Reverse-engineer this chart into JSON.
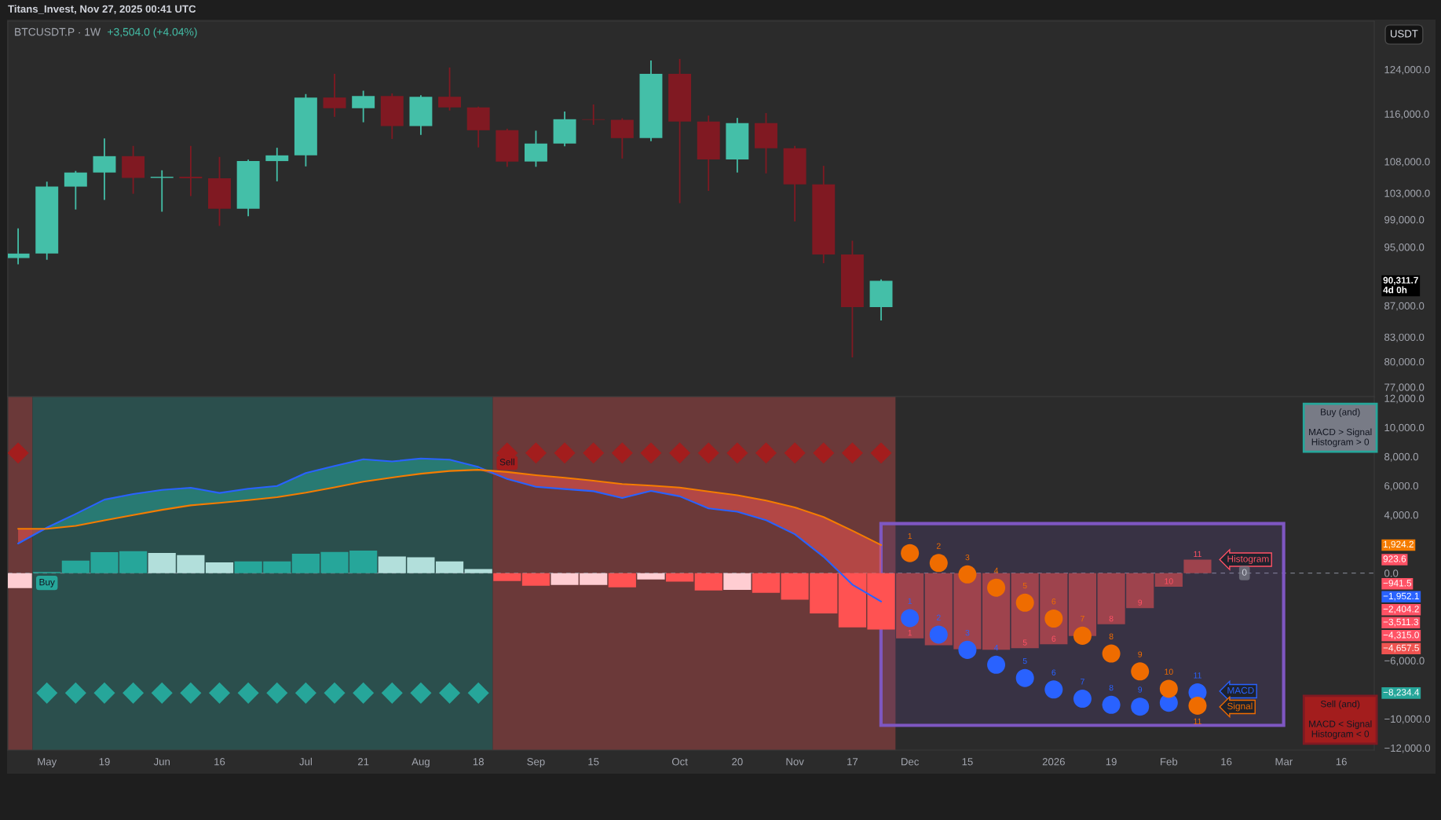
{
  "chart_data": [
    {
      "type": "candlestick",
      "title": "BTCUSDT.P · 1W",
      "subtitle": "+3,504.0 (+4.04%)",
      "ylabel": "USDT",
      "annotations": [
        "Titans_Invest, Nov 27, 2025 00:41 UTC",
        "90,311.7\n4d 0h"
      ],
      "x": [
        "2025-04-28",
        "2025-05-05",
        "2025-05-12",
        "2025-05-19",
        "2025-05-26",
        "2025-06-02",
        "2025-06-09",
        "2025-06-16",
        "2025-06-23",
        "2025-06-30",
        "2025-07-07",
        "2025-07-14",
        "2025-07-21",
        "2025-07-28",
        "2025-08-04",
        "2025-08-11",
        "2025-08-18",
        "2025-08-25",
        "2025-09-01",
        "2025-09-08",
        "2025-09-15",
        "2025-09-22",
        "2025-09-29",
        "2025-10-06",
        "2025-10-13",
        "2025-10-20",
        "2025-10-27",
        "2025-11-03",
        "2025-11-10",
        "2025-11-17",
        "2025-11-24"
      ],
      "ohlc": [
        [
          93440,
          97690,
          92580,
          94070
        ],
        [
          94070,
          104780,
          93200,
          104010
        ],
        [
          104010,
          106480,
          100500,
          106230
        ],
        [
          106230,
          111820,
          101950,
          108870
        ],
        [
          108870,
          110560,
          102900,
          105380
        ],
        [
          105380,
          106590,
          100170,
          105560
        ],
        [
          105560,
          110560,
          102540,
          105330
        ],
        [
          105330,
          108750,
          98060,
          100630
        ],
        [
          100630,
          108310,
          99490,
          108070
        ],
        [
          108070,
          110250,
          104840,
          109000
        ],
        [
          109000,
          119500,
          107210,
          118880
        ],
        [
          118880,
          123170,
          115470,
          116990
        ],
        [
          116990,
          120100,
          114550,
          119150
        ],
        [
          119150,
          119620,
          111710,
          113890
        ],
        [
          113890,
          119300,
          112410,
          119020
        ],
        [
          119020,
          124360,
          116580,
          117130
        ],
        [
          117130,
          117270,
          110310,
          113180
        ],
        [
          113180,
          113450,
          107150,
          108000
        ],
        [
          108000,
          113110,
          107150,
          110950
        ],
        [
          110950,
          116400,
          110500,
          115070
        ],
        [
          115070,
          117650,
          114110,
          114970
        ],
        [
          114970,
          115240,
          108480,
          111860
        ],
        [
          111860,
          125690,
          111350,
          123180
        ],
        [
          123180,
          125960,
          101460,
          114690
        ],
        [
          114690,
          115710,
          103350,
          108340
        ],
        [
          108340,
          115300,
          106230,
          114390
        ],
        [
          114390,
          116140,
          106090,
          110180
        ],
        [
          110180,
          110560,
          98720,
          104370
        ],
        [
          104370,
          107300,
          92720,
          93940
        ],
        [
          93940,
          95900,
          80500,
          86810
        ],
        [
          86810,
          90480,
          85090,
          90311.7
        ]
      ],
      "colors": [
        "#44bfa8",
        "#44bfa8",
        "#44bfa8",
        "#44bfa8",
        "#801922",
        "#44bfa8",
        "#801922",
        "#801922",
        "#44bfa8",
        "#44bfa8",
        "#44bfa8",
        "#801922",
        "#44bfa8",
        "#801922",
        "#44bfa8",
        "#801922",
        "#801922",
        "#801922",
        "#44bfa8",
        "#44bfa8",
        "#801922",
        "#801922",
        "#44bfa8",
        "#801922",
        "#801922",
        "#44bfa8",
        "#801922",
        "#801922",
        "#801922",
        "#801922",
        "#44bfa8"
      ],
      "log": true,
      "xlim": [
        "2025-04-25T12:00",
        "2026-03-24"
      ],
      "ylim": [
        75900,
        133300
      ],
      "yticks": [
        {
          "value": 124000,
          "label": "124,000.0"
        },
        {
          "value": 116000,
          "label": "116,000.0"
        },
        {
          "value": 108000,
          "label": "108,000.0"
        },
        {
          "value": 103000,
          "label": "103,000.0"
        },
        {
          "value": 99000,
          "label": "99,000.0"
        },
        {
          "value": 95000,
          "label": "95,000.0"
        },
        {
          "value": 87000,
          "label": "87,000.0"
        },
        {
          "value": 83000,
          "label": "83,000.0"
        },
        {
          "value": 80000,
          "label": "80,000.0"
        },
        {
          "value": 77000,
          "label": "77,000.0"
        }
      ],
      "tick_labels": "y"
    },
    {
      "type": "bar",
      "series": [
        {
          "type": "bar",
          "x": [
            "2025-04-28",
            "2025-05-05",
            "2025-05-12",
            "2025-05-19",
            "2025-05-26",
            "2025-06-02",
            "2025-06-09",
            "2025-06-16",
            "2025-06-23",
            "2025-06-30",
            "2025-07-07",
            "2025-07-14",
            "2025-07-21",
            "2025-07-28",
            "2025-08-04",
            "2025-08-11",
            "2025-08-18",
            "2025-08-25",
            "2025-09-01",
            "2025-09-08",
            "2025-09-15",
            "2025-09-22",
            "2025-09-29",
            "2025-10-06",
            "2025-10-13",
            "2025-10-20",
            "2025-10-27",
            "2025-11-03",
            "2025-11-10",
            "2025-11-17",
            "2025-11-24"
          ],
          "values": [
            -1030,
            80,
            850,
            1430,
            1500,
            1380,
            1240,
            730,
            800,
            800,
            1330,
            1450,
            1550,
            1140,
            1090,
            800,
            270,
            -550,
            -870,
            -810,
            -810,
            -980,
            -440,
            -590,
            -1190,
            -1150,
            -1360,
            -1830,
            -2770,
            -3730,
            -3880
          ],
          "colors": [
            "#ffcdd2",
            "#26a69a",
            "#26a69a",
            "#26a69a",
            "#26a69a",
            "#b2dfdb",
            "#b2dfdb",
            "#b2dfdb",
            "#26a69a",
            "#26a69a",
            "#26a69a",
            "#26a69a",
            "#26a69a",
            "#b2dfdb",
            "#b2dfdb",
            "#b2dfdb",
            "#b2dfdb",
            "#ff5252",
            "#ff5252",
            "#ffcdd2",
            "#ffcdd2",
            "#ff5252",
            "#ffcdd2",
            "#ff5252",
            "#ff5252",
            "#ffcdd2",
            "#ff5252",
            "#ff5252",
            "#ff5252",
            "#ff5252",
            "#ff5252"
          ]
        },
        {
          "type": "line",
          "color": "#2962ff",
          "x": [
            "2025-04-28",
            "2025-05-05",
            "2025-05-12",
            "2025-05-19",
            "2025-05-26",
            "2025-06-02",
            "2025-06-09",
            "2025-06-16",
            "2025-06-23",
            "2025-06-30",
            "2025-07-07",
            "2025-07-14",
            "2025-07-21",
            "2025-07-28",
            "2025-08-04",
            "2025-08-11",
            "2025-08-18",
            "2025-08-25",
            "2025-09-01",
            "2025-09-08",
            "2025-09-15",
            "2025-09-22",
            "2025-09-29",
            "2025-10-06",
            "2025-10-13",
            "2025-10-20",
            "2025-10-27",
            "2025-11-03",
            "2025-11-10",
            "2025-11-17",
            "2025-11-24"
          ],
          "values": [
            2030,
            3120,
            4060,
            5040,
            5420,
            5710,
            5860,
            5500,
            5790,
            5980,
            6870,
            7350,
            7810,
            7660,
            7860,
            7780,
            7280,
            6460,
            5920,
            5770,
            5620,
            5150,
            5640,
            5270,
            4440,
            4210,
            3630,
            2670,
            1120,
            -790,
            -1952.1
          ],
          "lower": [
            null,
            3040,
            3240,
            3620,
            3980,
            4340,
            4650,
            4820,
            5010,
            5210,
            5520,
            5880,
            6270,
            6560,
            6820,
            7010,
            7090,
            null,
            null,
            null,
            null,
            null,
            null,
            null,
            null,
            null,
            null,
            null,
            null,
            null,
            null
          ],
          "upper": [
            null,
            3120,
            4060,
            5040,
            5420,
            5710,
            5860,
            5500,
            5790,
            5980,
            6870,
            7350,
            7810,
            7660,
            7860,
            7780,
            7280,
            null,
            null,
            null,
            null,
            null,
            null,
            null,
            null,
            null,
            null,
            null,
            null,
            null,
            null
          ]
        },
        {
          "type": "line",
          "color": "#f57c00",
          "x": [
            "2025-04-28",
            "2025-05-05",
            "2025-05-12",
            "2025-05-19",
            "2025-05-26",
            "2025-06-02",
            "2025-06-09",
            "2025-06-16",
            "2025-06-23",
            "2025-06-30",
            "2025-07-07",
            "2025-07-14",
            "2025-07-21",
            "2025-07-28",
            "2025-08-04",
            "2025-08-11",
            "2025-08-18",
            "2025-08-25",
            "2025-09-01",
            "2025-09-08",
            "2025-09-15",
            "2025-09-22",
            "2025-09-29",
            "2025-10-06",
            "2025-10-13",
            "2025-10-20",
            "2025-10-27",
            "2025-11-03",
            "2025-11-10",
            "2025-11-17",
            "2025-11-24"
          ],
          "values": [
            3040,
            3040,
            3240,
            3620,
            3980,
            4340,
            4650,
            4820,
            5010,
            5210,
            5520,
            5880,
            6270,
            6560,
            6820,
            7010,
            7090,
            6940,
            6720,
            6540,
            6340,
            6110,
            6000,
            5870,
            5600,
            5340,
            4980,
            4510,
            3850,
            2910,
            1924.2
          ],
          "lower": [
            2030,
            3040,
            null,
            null,
            null,
            null,
            null,
            null,
            null,
            null,
            null,
            null,
            null,
            null,
            null,
            null,
            7090,
            6460,
            5920,
            5770,
            5620,
            5150,
            5640,
            5270,
            4440,
            4210,
            3630,
            2670,
            1120,
            -790,
            -1952.1
          ],
          "upper": [
            3040,
            3040,
            null,
            null,
            null,
            null,
            null,
            null,
            null,
            null,
            null,
            null,
            null,
            null,
            null,
            null,
            7090,
            6940,
            6720,
            6540,
            6340,
            6110,
            6000,
            5870,
            5600,
            5340,
            4980,
            4510,
            3850,
            2910,
            1924.2
          ]
        },
        {
          "type": "bar",
          "name": "Histogram",
          "color": "#9e434d",
          "x": [
            "2025-12-01",
            "2025-12-08",
            "2025-12-15",
            "2025-12-22",
            "2025-12-29",
            "2026-01-05",
            "2026-01-12",
            "2026-01-19",
            "2026-01-26",
            "2026-02-02",
            "2026-02-09"
          ],
          "values": [
            -4480,
            -4950,
            -5220,
            -5260,
            -5150,
            -4890,
            -4315.0,
            -3511.3,
            -2404.2,
            -941.5,
            923.6
          ]
        },
        {
          "type": "scatter",
          "name": "MACD",
          "marker": "circle",
          "color": "#2962ff",
          "x": [
            "2025-12-01",
            "2025-12-08",
            "2025-12-15",
            "2025-12-22",
            "2025-12-29",
            "2026-01-05",
            "2026-01-12",
            "2026-01-19",
            "2026-01-26",
            "2026-02-02",
            "2026-02-09"
          ],
          "values": [
            -3090,
            -4220,
            -5270,
            -6290,
            -7200,
            -7990,
            -8620,
            -9040,
            -9170,
            -8900,
            -8190
          ]
        },
        {
          "type": "scatter",
          "name": "Signal",
          "marker": "circle",
          "color": "#ef6c00",
          "x": [
            "2025-12-01",
            "2025-12-08",
            "2025-12-15",
            "2025-12-22",
            "2025-12-29",
            "2026-01-05",
            "2026-01-12",
            "2026-01-19",
            "2026-01-26",
            "2026-02-02",
            "2026-02-09"
          ],
          "values": [
            1370,
            690,
            -90,
            -1000,
            -2030,
            -3120,
            -4300,
            -5520,
            -6750,
            -7940,
            -9100
          ]
        },
        {
          "type": "scatter",
          "marker": "diamond",
          "color": "#a31d1d",
          "x": [
            "2025-04-28",
            "2025-08-25",
            "2025-09-01",
            "2025-09-08",
            "2025-09-15",
            "2025-09-22",
            "2025-09-29",
            "2025-10-06",
            "2025-10-13",
            "2025-10-20",
            "2025-10-27",
            "2025-11-03",
            "2025-11-10",
            "2025-11-17",
            "2025-11-24"
          ],
          "values": [
            8240,
            8240,
            8240,
            8240,
            8240,
            8240,
            8240,
            8240,
            8240,
            8240,
            8240,
            8240,
            8240,
            8240,
            8240
          ]
        },
        {
          "type": "scatter",
          "marker": "diamond",
          "color": "#26a69a",
          "x": [
            "2025-05-05",
            "2025-05-12",
            "2025-05-19",
            "2025-05-26",
            "2025-06-02",
            "2025-06-09",
            "2025-06-16",
            "2025-06-23",
            "2025-06-30",
            "2025-07-07",
            "2025-07-14",
            "2025-07-21",
            "2025-07-28",
            "2025-08-04",
            "2025-08-11",
            "2025-08-18"
          ],
          "values": [
            -8234.4,
            -8234.4,
            -8234.4,
            -8234.4,
            -8234.4,
            -8234.4,
            -8234.4,
            -8234.4,
            -8234.4,
            -8234.4,
            -8234.4,
            -8234.4,
            -8234.4,
            -8234.4,
            -8234.4,
            -8234.4
          ]
        }
      ],
      "bands": [
        {
          "axis": "x",
          "from": "2025-04-25T12:00",
          "to": "2025-05-01T12:00",
          "color": "#6b3939"
        },
        {
          "axis": "x",
          "from": "2025-05-01T12:00",
          "to": "2025-08-21T12:00",
          "color": "#2b4f4d"
        },
        {
          "axis": "x",
          "from": "2025-08-21T12:00",
          "to": "2025-11-27T12:00",
          "color": "#6b3939"
        }
      ],
      "ref_lines": [
        {
          "axis": "y",
          "value": 0,
          "label": "0",
          "line_style": "dashed",
          "color": "#787b86"
        }
      ],
      "annotations": [
        {
          "text": "Buy",
          "x": "2025-05-05",
          "y": 0
        },
        {
          "text": "Sell",
          "x": "2025-08-25",
          "y": 8240
        },
        "Buy (and)\nMACD > Signal\nHistogram > 0",
        "Sell (and)\nMACD < Signal\nHistogram < 0",
        "1,924.2",
        "923.6",
        "−941.5",
        "−1,952.1",
        "−2,404.2",
        "−3,511.3",
        "−4,315.0",
        "−4,657.5",
        "−8,234.4",
        {
          "text": "1",
          "x": "2025-12-01",
          "y": -4480
        },
        {
          "text": "5",
          "x": "2025-12-29",
          "y": -5150
        },
        {
          "text": "6",
          "x": "2026-01-05",
          "y": -4890
        },
        {
          "text": "8",
          "x": "2026-01-19",
          "y": -3511.3
        },
        {
          "text": "9",
          "x": "2026-01-26",
          "y": -2404.2
        },
        {
          "text": "10",
          "x": "2026-02-02",
          "y": -941.5
        },
        {
          "text": "11",
          "x": "2026-02-09",
          "y": 923.6
        },
        {
          "text": "1",
          "x": "2025-12-01",
          "y": -3090
        },
        {
          "text": "2",
          "x": "2025-12-08",
          "y": -4220
        },
        {
          "text": "3",
          "x": "2025-12-15",
          "y": -5270
        },
        {
          "text": "4",
          "x": "2025-12-22",
          "y": -6290
        },
        {
          "text": "5",
          "x": "2025-12-29",
          "y": -7200
        },
        {
          "text": "6",
          "x": "2026-01-05",
          "y": -7990
        },
        {
          "text": "7",
          "x": "2026-01-12",
          "y": -8620
        },
        {
          "text": "8",
          "x": "2026-01-19",
          "y": -9040
        },
        {
          "text": "9",
          "x": "2026-01-26",
          "y": -9170
        },
        {
          "text": "11",
          "x": "2026-02-09",
          "y": -8190
        },
        {
          "text": "1",
          "x": "2025-12-01",
          "y": 1370
        },
        {
          "text": "2",
          "x": "2025-12-08",
          "y": 690
        },
        {
          "text": "3",
          "x": "2025-12-15",
          "y": -90
        },
        {
          "text": "4",
          "x": "2025-12-22",
          "y": -1000
        },
        {
          "text": "5",
          "x": "2025-12-29",
          "y": -2030
        },
        {
          "text": "6",
          "x": "2026-01-05",
          "y": -3120
        },
        {
          "text": "7",
          "x": "2026-01-12",
          "y": -4300
        },
        {
          "text": "8",
          "x": "2026-01-19",
          "y": -5520
        },
        {
          "text": "9",
          "x": "2026-01-26",
          "y": -6750
        },
        {
          "text": "10",
          "x": "2026-02-02",
          "y": -7940
        },
        {
          "text": "11",
          "x": "2026-02-09",
          "y": -9100
        }
      ],
      "xlim": [
        "2025-04-25T12:00",
        "2026-03-24"
      ],
      "ylim": [
        -12150,
        12110
      ],
      "xticks": [
        {
          "value": "2025-05-05",
          "label": "May"
        },
        {
          "value": "2025-05-19",
          "label": "19"
        },
        {
          "value": "2025-06-02",
          "label": "Jun"
        },
        {
          "value": "2025-06-16",
          "label": "16"
        },
        {
          "value": "2025-07-07",
          "label": "Jul"
        },
        {
          "value": "2025-07-21",
          "label": "21"
        },
        {
          "value": "2025-08-04",
          "label": "Aug"
        },
        {
          "value": "2025-08-18",
          "label": "18"
        },
        {
          "value": "2025-09-01",
          "label": "Sep"
        },
        {
          "value": "2025-09-15",
          "label": "15"
        },
        {
          "value": "2025-10-06",
          "label": "Oct"
        },
        {
          "value": "2025-10-20",
          "label": "20"
        },
        {
          "value": "2025-11-03",
          "label": "Nov"
        },
        {
          "value": "2025-11-17",
          "label": "17"
        },
        {
          "value": "2025-12-01",
          "label": "Dec"
        },
        {
          "value": "2025-12-15",
          "label": "15"
        },
        {
          "value": "2026-01-05",
          "label": "2026"
        },
        {
          "value": "2026-01-19",
          "label": "19"
        },
        {
          "value": "2026-02-02",
          "label": "Feb"
        },
        {
          "value": "2026-02-16",
          "label": "16"
        },
        {
          "value": "2026-03-02",
          "label": "Mar"
        },
        {
          "value": "2026-03-16",
          "label": "16"
        }
      ],
      "yticks": [
        {
          "value": 12000,
          "label": "12,000.0"
        },
        {
          "value": 10000,
          "label": "10,000.0"
        },
        {
          "value": 8000,
          "label": "8,000.0"
        },
        {
          "value": 6000,
          "label": "6,000.0"
        },
        {
          "value": 4000,
          "label": "4,000.0"
        },
        {
          "value": 0,
          "label": "0.0"
        },
        {
          "value": -6000,
          "label": "−6,000.0"
        },
        {
          "value": -10000,
          "label": "−10,000.0"
        },
        {
          "value": -12000,
          "label": "−12,000.0"
        }
      ]
    }
  ]
}
